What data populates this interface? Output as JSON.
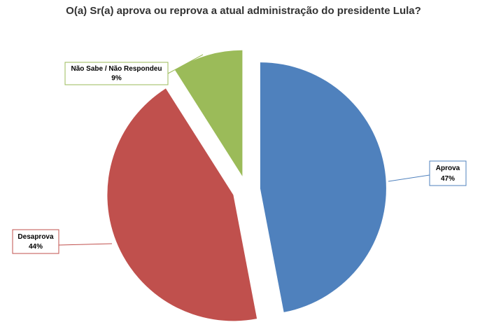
{
  "chart_data": {
    "type": "pie",
    "title": "O(a) Sr(a) aprova ou reprova a atual administração do presidente Lula?",
    "categories": [
      "Aprova",
      "Desaprova",
      "Não Sabe / Não Respondeu"
    ],
    "values": [
      47,
      44,
      9
    ],
    "value_labels": [
      "47%",
      "44%",
      "9%"
    ],
    "colors": [
      "#4f81bd",
      "#c0504d",
      "#9bbb59"
    ]
  }
}
